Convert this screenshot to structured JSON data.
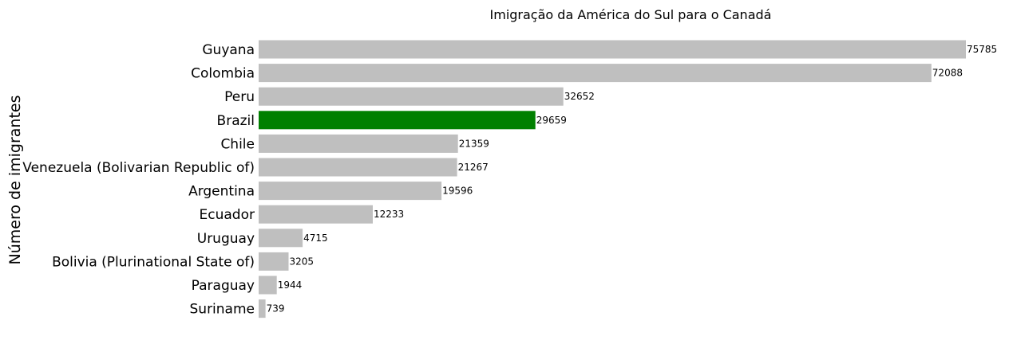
{
  "chart_data": {
    "type": "bar",
    "orientation": "horizontal",
    "title": "Imigração da América do Sul para o Canadá",
    "ylabel": "Número de imigrantes",
    "xlabel": "",
    "categories": [
      "Guyana",
      "Colombia",
      "Peru",
      "Brazil",
      "Chile",
      "Venezuela (Bolivarian Republic of)",
      "Argentina",
      "Ecuador",
      "Uruguay",
      "Bolivia (Plurinational State of)",
      "Paraguay",
      "Suriname"
    ],
    "values": [
      75785,
      72088,
      32652,
      29659,
      21359,
      21267,
      19596,
      12233,
      4715,
      3205,
      1944,
      739
    ],
    "highlight": "Brazil",
    "colors": {
      "default": "#bfbfbf",
      "highlight": "#008000"
    },
    "xlim": [
      0,
      75785
    ],
    "grid": false,
    "axes_visible": false,
    "data_labels": true
  }
}
